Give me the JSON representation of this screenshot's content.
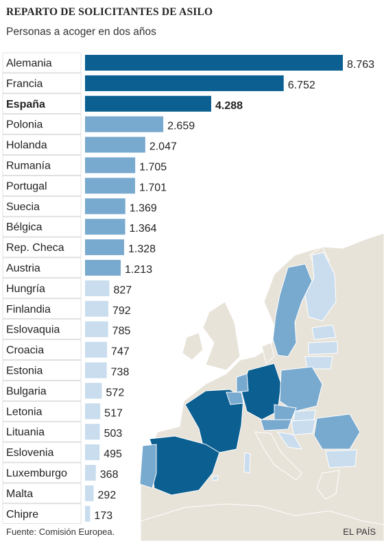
{
  "title": "REPARTO DE SOLICITANTES DE ASILO",
  "subtitle": "Personas a acoger en dos años",
  "source": "Fuente: Comisión Europea.",
  "credit": "EL PAÍS",
  "colors": {
    "high": "#0b5f91",
    "mid": "#78a9ce",
    "low": "#c9ddee",
    "land": "#e8e3d9",
    "water": "#ffffff"
  },
  "chart_data": {
    "type": "bar",
    "orientation": "horizontal",
    "title": "REPARTO DE SOLICITANTES DE ASILO",
    "subtitle": "Personas a acoger en dos años",
    "highlight": "España",
    "categories": [
      "Alemania",
      "Francia",
      "España",
      "Polonia",
      "Holanda",
      "Rumanía",
      "Portugal",
      "Suecia",
      "Bélgica",
      "Rep. Checa",
      "Austria",
      "Hungría",
      "Finlandia",
      "Eslovaquia",
      "Croacia",
      "Estonia",
      "Bulgaria",
      "Letonia",
      "Lituania",
      "Eslovenia",
      "Luxemburgo",
      "Malta",
      "Chipre"
    ],
    "values": [
      8763,
      6752,
      4288,
      2659,
      2047,
      1705,
      1701,
      1369,
      1364,
      1328,
      1213,
      827,
      792,
      785,
      747,
      738,
      572,
      517,
      503,
      495,
      368,
      292,
      173
    ],
    "value_labels": [
      "8.763",
      "6.752",
      "4.288",
      "2.659",
      "2.047",
      "1.705",
      "1.701",
      "1.369",
      "1.364",
      "1.328",
      "1.213",
      "827",
      "792",
      "785",
      "747",
      "738",
      "572",
      "517",
      "503",
      "495",
      "368",
      "292",
      "173"
    ],
    "color_class": [
      "high",
      "high",
      "high",
      "mid",
      "mid",
      "mid",
      "mid",
      "mid",
      "mid",
      "mid",
      "mid",
      "low",
      "low",
      "low",
      "low",
      "low",
      "low",
      "low",
      "low",
      "low",
      "low",
      "low",
      "low"
    ],
    "xlim": [
      0,
      8763
    ],
    "grid": false,
    "legend": "none"
  }
}
